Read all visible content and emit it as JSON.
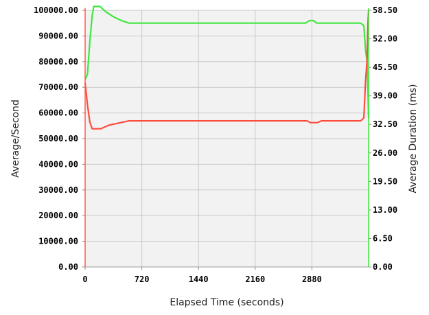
{
  "chart_data": {
    "type": "line",
    "xlabel": "Elapsed Time (seconds)",
    "ylabel_left": "Average/Second",
    "ylabel_right": "Average Duration (ms)",
    "xlim": [
      0,
      3600
    ],
    "ylim_left": [
      0,
      100000
    ],
    "ylim_right": [
      0,
      58.5
    ],
    "x_ticks": [
      "0",
      "720",
      "1440",
      "2160",
      "2880"
    ],
    "y_left_ticks": [
      "0.00",
      "10000.00",
      "20000.00",
      "30000.00",
      "40000.00",
      "50000.00",
      "60000.00",
      "70000.00",
      "80000.00",
      "90000.00",
      "100000.00"
    ],
    "y_right_ticks": [
      "0.00",
      "6.50",
      "13.00",
      "19.50",
      "26.00",
      "32.50",
      "39.00",
      "45.50",
      "52.00",
      "58.50"
    ],
    "grid": true,
    "axis_colors": {
      "left": "#ff5a4e",
      "right": "#39e639"
    },
    "series": [
      {
        "axis": "left",
        "color": "#3ee83e",
        "points": [
          [
            0,
            73000
          ],
          [
            30,
            75000
          ],
          [
            60,
            88000
          ],
          [
            90,
            98000
          ],
          [
            110,
            101500
          ],
          [
            190,
            101500
          ],
          [
            260,
            99500
          ],
          [
            360,
            97500
          ],
          [
            460,
            96000
          ],
          [
            560,
            95000
          ],
          [
            700,
            95000
          ],
          [
            1440,
            95000
          ],
          [
            2160,
            95000
          ],
          [
            2800,
            95000
          ],
          [
            2850,
            96000
          ],
          [
            2900,
            96000
          ],
          [
            2940,
            95000
          ],
          [
            3300,
            95000
          ],
          [
            3500,
            95000
          ],
          [
            3540,
            94000
          ],
          [
            3560,
            85000
          ],
          [
            3580,
            80000
          ],
          [
            3590,
            70000
          ],
          [
            3600,
            58000
          ]
        ]
      },
      {
        "axis": "right",
        "color": "#ff4d3d",
        "points": [
          [
            0,
            42
          ],
          [
            30,
            37
          ],
          [
            60,
            33
          ],
          [
            90,
            31.5
          ],
          [
            200,
            31.5
          ],
          [
            300,
            32.3
          ],
          [
            400,
            32.7
          ],
          [
            560,
            33.3
          ],
          [
            700,
            33.3
          ],
          [
            1440,
            33.3
          ],
          [
            2160,
            33.3
          ],
          [
            2820,
            33.3
          ],
          [
            2860,
            32.9
          ],
          [
            2950,
            32.9
          ],
          [
            3000,
            33.3
          ],
          [
            3500,
            33.3
          ],
          [
            3540,
            34
          ],
          [
            3560,
            42
          ],
          [
            3580,
            47
          ],
          [
            3590,
            55
          ],
          [
            3600,
            58.5
          ]
        ]
      }
    ]
  }
}
